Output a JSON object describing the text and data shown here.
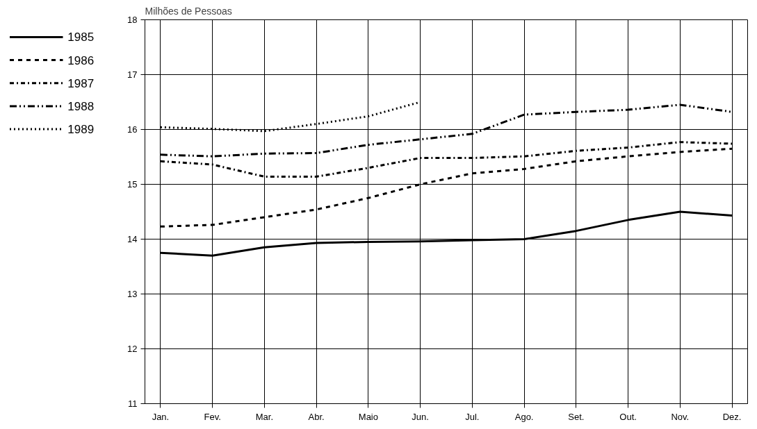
{
  "chart_data": {
    "type": "line",
    "ylabel": "Milhões de Pessoas",
    "categories": [
      "Jan.",
      "Fev.",
      "Mar.",
      "Abr.",
      "Maio",
      "Jun.",
      "Jul.",
      "Ago.",
      "Set.",
      "Out.",
      "Nov.",
      "Dez."
    ],
    "series": [
      {
        "name": "1985",
        "color": "#000000",
        "line_style": "solid",
        "values": [
          13.75,
          13.7,
          13.85,
          13.93,
          13.95,
          13.96,
          13.98,
          14.0,
          14.15,
          14.35,
          14.5,
          14.43
        ]
      },
      {
        "name": "1986",
        "color": "#000000",
        "line_style": "dashed",
        "values": [
          14.23,
          14.26,
          14.4,
          14.54,
          14.75,
          15.0,
          15.2,
          15.28,
          15.42,
          15.51,
          15.59,
          15.65
        ]
      },
      {
        "name": "1987",
        "color": "#000000",
        "line_style": "dashdot",
        "values": [
          15.42,
          15.36,
          15.14,
          15.14,
          15.3,
          15.48,
          15.48,
          15.51,
          15.61,
          15.67,
          15.77,
          15.74
        ]
      },
      {
        "name": "1988",
        "color": "#000000",
        "line_style": "dashdotdot",
        "values": [
          15.54,
          15.51,
          15.56,
          15.57,
          15.72,
          15.82,
          15.92,
          16.27,
          16.32,
          16.36,
          16.45,
          16.32
        ]
      },
      {
        "name": "1989",
        "color": "#000000",
        "line_style": "dotted",
        "values": [
          16.04,
          16.01,
          15.97,
          16.1,
          16.24,
          16.5,
          null,
          null,
          null,
          null,
          null,
          null
        ]
      }
    ],
    "ylim": [
      11,
      18
    ],
    "yticks": [
      11,
      12,
      13,
      14,
      15,
      16,
      17,
      18
    ],
    "grid": true,
    "legend": "left",
    "marker": "none"
  }
}
